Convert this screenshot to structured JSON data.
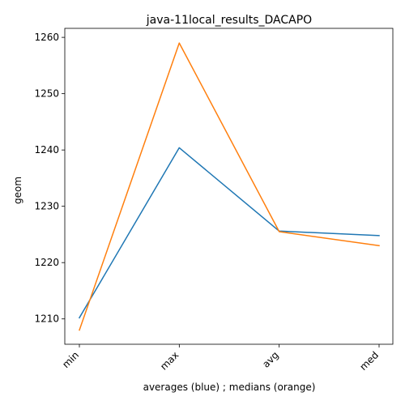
{
  "chart_data": {
    "type": "line",
    "title": "java-11local_results_DACAPO",
    "xlabel": "averages (blue) ; medians (orange)",
    "ylabel": "geom",
    "categories": [
      "min",
      "max",
      "avg",
      "med"
    ],
    "ylim": [
      1205.5,
      1261.6
    ],
    "yticks": [
      1210,
      1220,
      1230,
      1240,
      1250,
      1260
    ],
    "grid": false,
    "series": [
      {
        "color": "#1f77b4",
        "values": [
          1210.2,
          1240.4,
          1225.6,
          1224.8
        ]
      },
      {
        "color": "#ff7f0e",
        "values": [
          1208.0,
          1259.0,
          1225.5,
          1223.0
        ]
      }
    ]
  }
}
